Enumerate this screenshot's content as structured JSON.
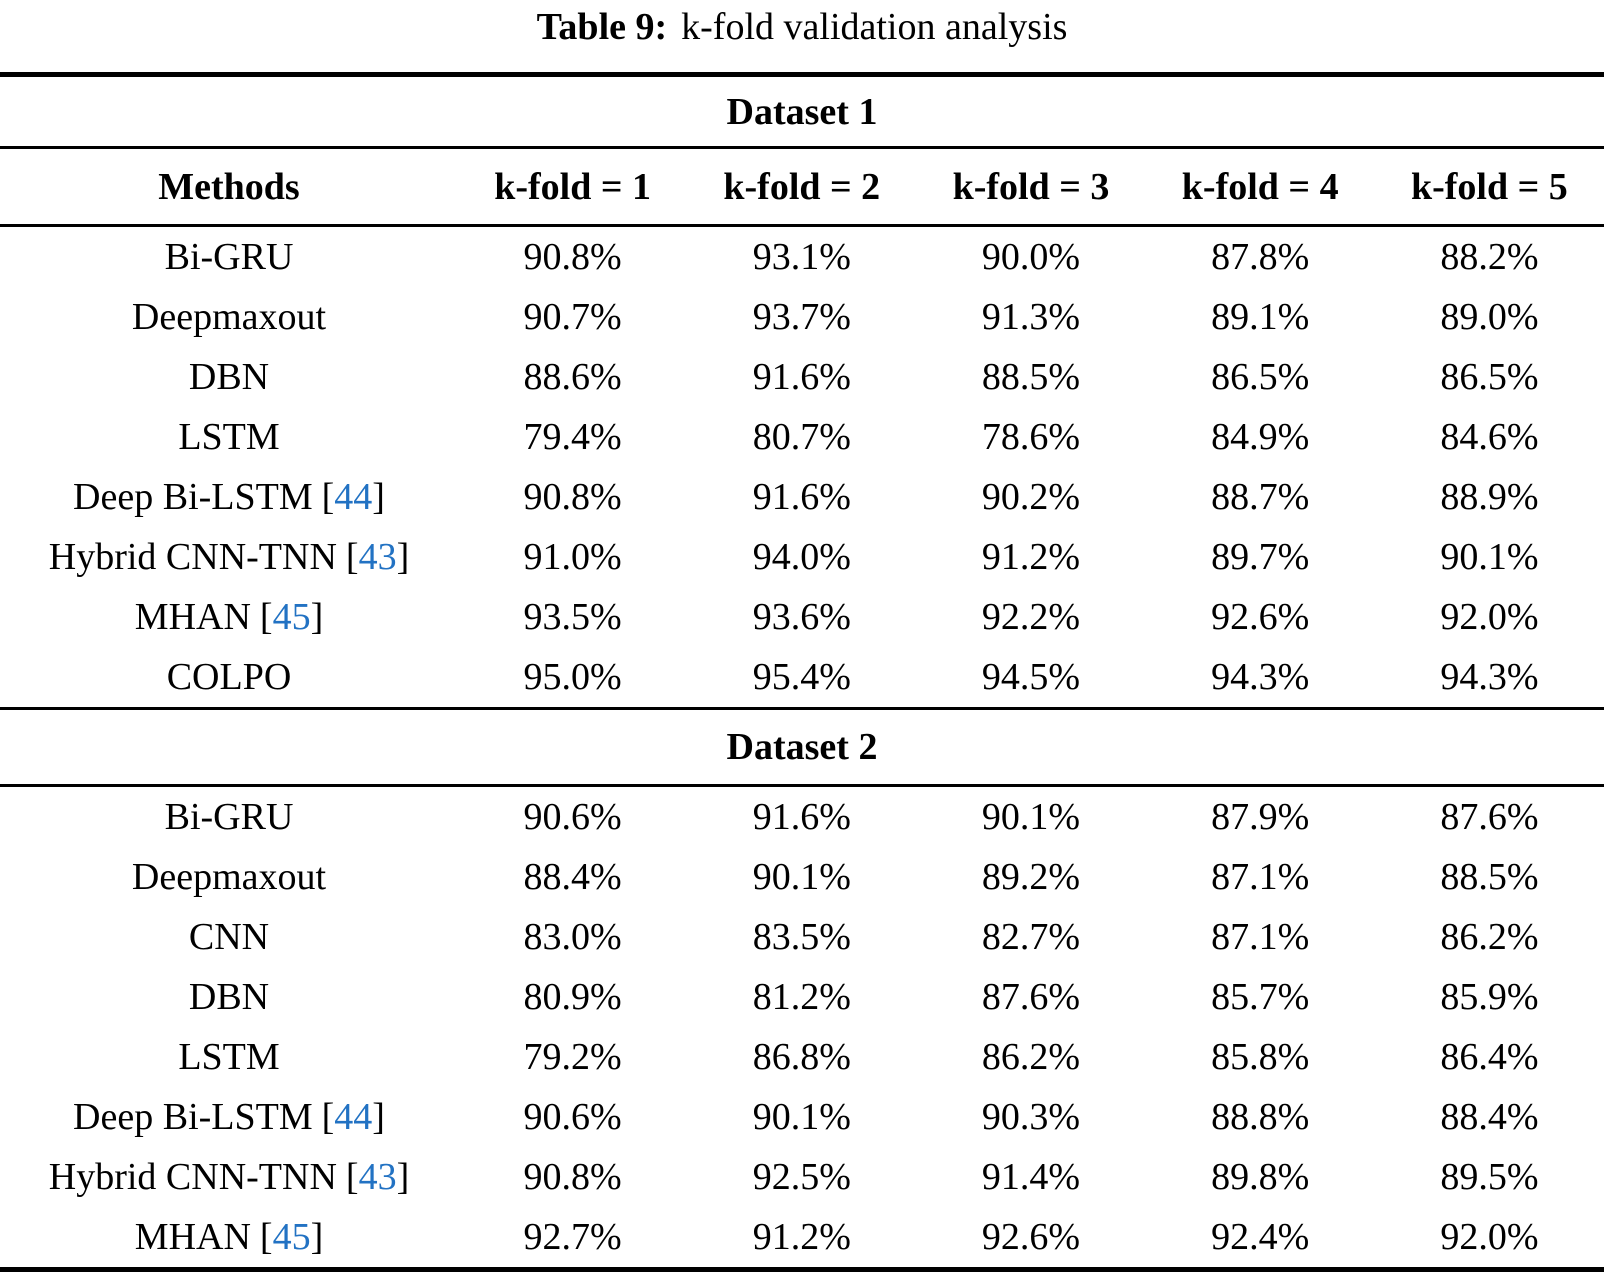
{
  "title": {
    "label": "Table 9:",
    "caption": "k-fold validation analysis"
  },
  "columns": [
    "Methods",
    "k-fold = 1",
    "k-fold = 2",
    "k-fold = 3",
    "k-fold = 4",
    "k-fold = 5"
  ],
  "sections": [
    {
      "label": "Dataset 1",
      "rows": [
        {
          "method": "Bi-GRU",
          "citation": null,
          "values": [
            "90.8%",
            "93.1%",
            "90.0%",
            "87.8%",
            "88.2%"
          ]
        },
        {
          "method": "Deepmaxout",
          "citation": null,
          "values": [
            "90.7%",
            "93.7%",
            "91.3%",
            "89.1%",
            "89.0%"
          ]
        },
        {
          "method": "DBN",
          "citation": null,
          "values": [
            "88.6%",
            "91.6%",
            "88.5%",
            "86.5%",
            "86.5%"
          ]
        },
        {
          "method": "LSTM",
          "citation": null,
          "values": [
            "79.4%",
            "80.7%",
            "78.6%",
            "84.9%",
            "84.6%"
          ]
        },
        {
          "method": "Deep Bi-LSTM",
          "citation": "44",
          "values": [
            "90.8%",
            "91.6%",
            "90.2%",
            "88.7%",
            "88.9%"
          ]
        },
        {
          "method": "Hybrid CNN-TNN",
          "citation": "43",
          "values": [
            "91.0%",
            "94.0%",
            "91.2%",
            "89.7%",
            "90.1%"
          ]
        },
        {
          "method": "MHAN",
          "citation": "45",
          "values": [
            "93.5%",
            "93.6%",
            "92.2%",
            "92.6%",
            "92.0%"
          ]
        },
        {
          "method": "COLPO",
          "citation": null,
          "values": [
            "95.0%",
            "95.4%",
            "94.5%",
            "94.3%",
            "94.3%"
          ]
        }
      ]
    },
    {
      "label": "Dataset 2",
      "rows": [
        {
          "method": "Bi-GRU",
          "citation": null,
          "values": [
            "90.6%",
            "91.6%",
            "90.1%",
            "87.9%",
            "87.6%"
          ]
        },
        {
          "method": "Deepmaxout",
          "citation": null,
          "values": [
            "88.4%",
            "90.1%",
            "89.2%",
            "87.1%",
            "88.5%"
          ]
        },
        {
          "method": "CNN",
          "citation": null,
          "values": [
            "83.0%",
            "83.5%",
            "82.7%",
            "87.1%",
            "86.2%"
          ]
        },
        {
          "method": "DBN",
          "citation": null,
          "values": [
            "80.9%",
            "81.2%",
            "87.6%",
            "85.7%",
            "85.9%"
          ]
        },
        {
          "method": "LSTM",
          "citation": null,
          "values": [
            "79.2%",
            "86.8%",
            "86.2%",
            "85.8%",
            "86.4%"
          ]
        },
        {
          "method": "Deep Bi-LSTM",
          "citation": "44",
          "values": [
            "90.6%",
            "90.1%",
            "90.3%",
            "88.8%",
            "88.4%"
          ]
        },
        {
          "method": "Hybrid CNN-TNN",
          "citation": "43",
          "values": [
            "90.8%",
            "92.5%",
            "91.4%",
            "89.8%",
            "89.5%"
          ]
        },
        {
          "method": "MHAN",
          "citation": "45",
          "values": [
            "92.7%",
            "91.2%",
            "92.6%",
            "92.4%",
            "92.0%"
          ]
        }
      ]
    }
  ],
  "colors": {
    "text": "#000000",
    "background": "#ffffff",
    "citation_link": "#2272c3",
    "rule": "#000000"
  }
}
